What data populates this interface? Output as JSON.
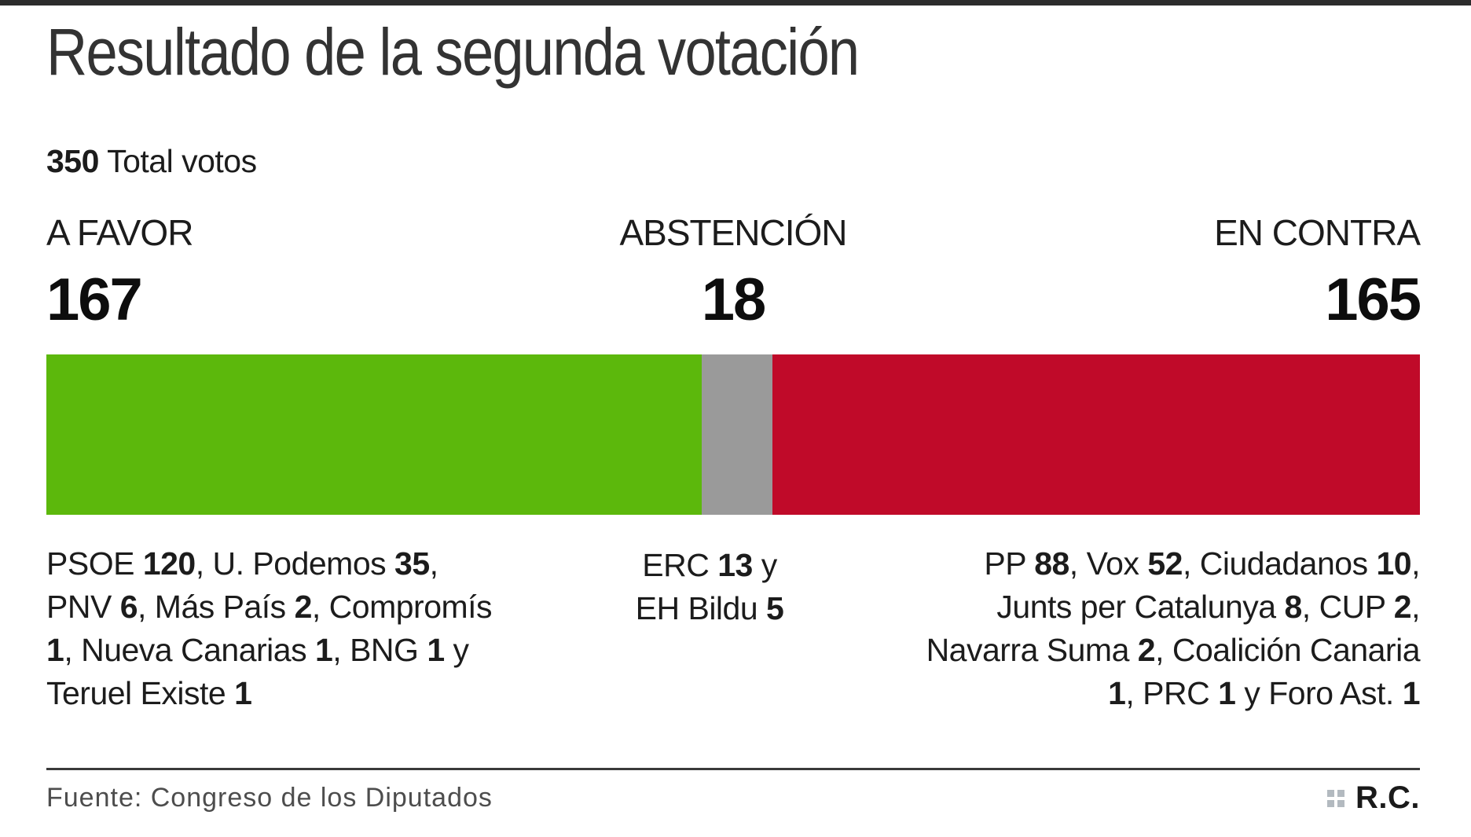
{
  "header": {
    "title": "Resultado de la segunda votación"
  },
  "total": {
    "value": "350",
    "label": " Total votos"
  },
  "chart_data": {
    "type": "bar",
    "subtype": "horizontal-stacked",
    "title": "Resultado de la segunda votación",
    "total_votes": 350,
    "total_label": "350 Total votos",
    "categories": [
      "A FAVOR",
      "ABSTENCIÓN",
      "EN CONTRA"
    ],
    "values": [
      167,
      18,
      165
    ],
    "colors": [
      "#5cb80c",
      "#9a9a9a",
      "#c00a29"
    ],
    "breakdown": [
      "PSOE 120, U. Podemos 35, PNV 6, Más País 2, Compromís 1, Nueva Canarias 1, BNG 1 y Teruel Existe 1",
      "ERC 13 y EH Bildu 5",
      "PP 88, Vox 52, Ciudadanos 10, Junts per Catalunya 8, CUP 2, Navarra Suma 2, Coalición Canaria 1, PRC 1 y Foro Ast. 1"
    ]
  },
  "columns": [
    {
      "label": "A FAVOR",
      "value": "167",
      "detail_parts": [
        {
          "t": "PSOE "
        },
        {
          "t": "120",
          "b": true
        },
        {
          "t": ", U. Podemos "
        },
        {
          "t": "35",
          "b": true
        },
        {
          "t": ", PNV "
        },
        {
          "t": "6",
          "b": true
        },
        {
          "t": ", Más País "
        },
        {
          "t": "2",
          "b": true
        },
        {
          "t": ", Compromís "
        },
        {
          "t": "1",
          "b": true
        },
        {
          "t": ", Nueva Canarias "
        },
        {
          "t": "1",
          "b": true
        },
        {
          "t": ", BNG "
        },
        {
          "t": "1",
          "b": true
        },
        {
          "t": " y Teruel Existe "
        },
        {
          "t": "1",
          "b": true
        }
      ]
    },
    {
      "label": "ABSTENCIÓN",
      "value": "18",
      "detail_parts": [
        {
          "t": "ERC "
        },
        {
          "t": "13",
          "b": true
        },
        {
          "t": " y"
        },
        {
          "br": true
        },
        {
          "t": "EH Bildu "
        },
        {
          "t": "5",
          "b": true
        }
      ]
    },
    {
      "label": "EN CONTRA",
      "value": "165",
      "detail_parts": [
        {
          "t": "PP "
        },
        {
          "t": "88",
          "b": true
        },
        {
          "t": ", Vox "
        },
        {
          "t": "52",
          "b": true
        },
        {
          "t": ", Ciudadanos "
        },
        {
          "t": "10",
          "b": true
        },
        {
          "t": ", Junts per Catalunya "
        },
        {
          "t": "8",
          "b": true
        },
        {
          "t": ", CUP "
        },
        {
          "t": "2",
          "b": true
        },
        {
          "t": ", Navarra Suma "
        },
        {
          "t": "2",
          "b": true
        },
        {
          "t": ", Coalición Canaria "
        },
        {
          "t": "1",
          "b": true
        },
        {
          "t": ", PRC "
        },
        {
          "t": "1",
          "b": true
        },
        {
          "t": " y Foro Ast. "
        },
        {
          "t": "1",
          "b": true
        }
      ]
    }
  ],
  "footer": {
    "source": "Fuente: Congreso de los Diputados",
    "credit": "R.C."
  }
}
